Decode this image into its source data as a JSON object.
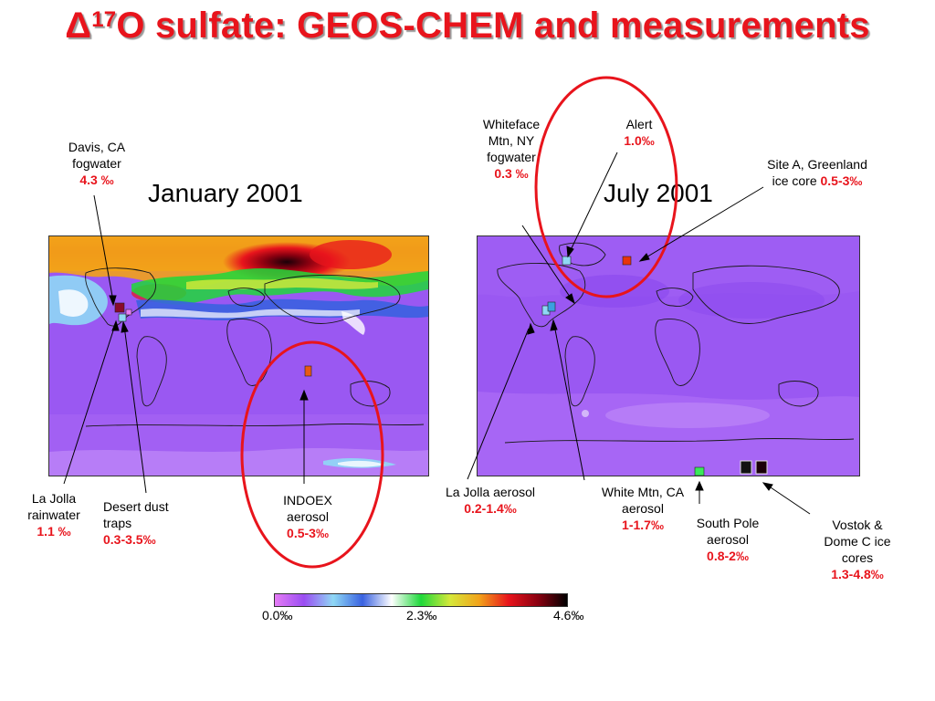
{
  "slide": {
    "title_delta": "Δ",
    "title_sup": "17",
    "title_rest": "O sulfate: GEOS-CHEM and measurements"
  },
  "maps": {
    "january": {
      "title": "January 2001"
    },
    "july": {
      "title": "July 2001"
    }
  },
  "labels": {
    "davis": {
      "line1": "Davis, CA",
      "line2": "fogwater",
      "value": "4.3 ‰"
    },
    "whiteface": {
      "line1": "Whiteface",
      "line2": "Mtn, NY",
      "line3": "fogwater",
      "value": "0.3 ‰"
    },
    "alert": {
      "line1": "Alert",
      "value": "1.0‰"
    },
    "site_a": {
      "line1": "Site A, Greenland",
      "line2": "ice core ",
      "value": "0.5-3‰"
    },
    "la_jolla_rain": {
      "line1": "La Jolla",
      "line2": "rainwater",
      "value": "1.1 ‰"
    },
    "desert_dust": {
      "line1": "Desert dust",
      "line2": "traps",
      "value": "0.3-3.5‰"
    },
    "indoex": {
      "line1": "INDOEX",
      "line2": "aerosol",
      "value": "0.5-3‰"
    },
    "la_jolla_aerosol": {
      "line1": "La Jolla aerosol",
      "value": "0.2-1.4‰"
    },
    "white_mtn": {
      "line1": "White Mtn, CA",
      "line2": "aerosol",
      "value": "1-1.7‰"
    },
    "south_pole": {
      "line1": "South Pole",
      "line2": "aerosol",
      "value": "0.8-2‰"
    },
    "vostok": {
      "line1": "Vostok &",
      "line2": "Dome C ice",
      "line3": "cores",
      "value": "1.3-4.8‰"
    }
  },
  "colorbar": {
    "ticks": [
      "0.0‰",
      "2.3‰",
      "4.6‰"
    ],
    "colors": [
      "#e57cf5",
      "#9a4df2",
      "#8fd8f5",
      "#3a62e0",
      "#ffffff",
      "#1ed83a",
      "#d6e83a",
      "#f2a21a",
      "#e8141c",
      "#8a0010",
      "#000000"
    ]
  },
  "colors": {
    "title_red": "#e8141c",
    "ellipse_red": "#e8141c",
    "map_background_purple": "#9a58f2"
  }
}
